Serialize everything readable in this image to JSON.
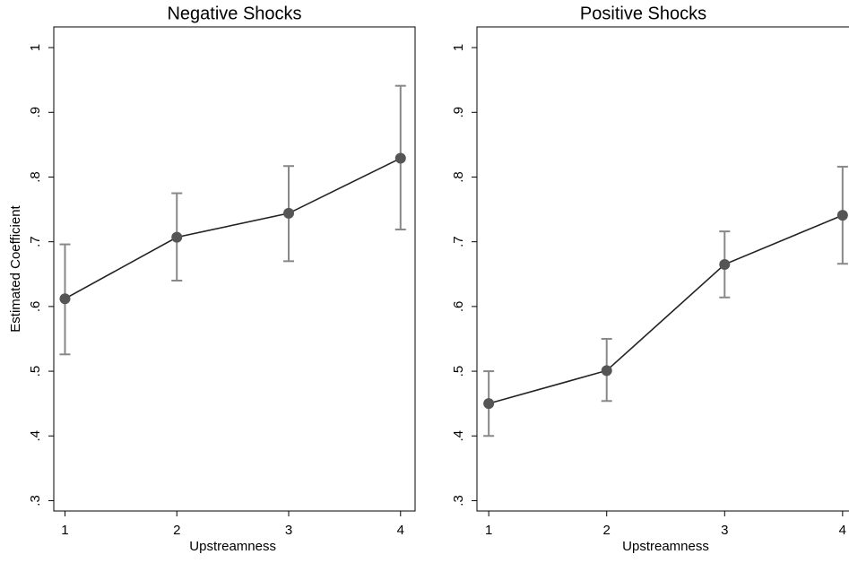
{
  "chart_data": [
    {
      "type": "line",
      "title": "Negative Shocks",
      "y_label": "Estimated Coefficient",
      "x_label": "Upstreamness",
      "x": [
        1,
        2,
        3,
        4
      ],
      "series": [
        {
          "color": "#555555",
          "values": [
            0.612,
            0.707,
            0.744,
            0.829
          ],
          "lower": [
            0.526,
            0.64,
            0.67,
            0.719
          ],
          "upper": [
            0.696,
            0.775,
            0.817,
            0.941
          ]
        }
      ],
      "xlim": [
        0.9,
        4.13
      ],
      "xticks": [
        1,
        2,
        3,
        4
      ],
      "ylim": [
        0.284,
        1.032
      ],
      "yticks": [
        {
          "value": 0.3,
          "label": ".3"
        },
        {
          "value": 0.4,
          "label": ".4"
        },
        {
          "value": 0.5,
          "label": ".5"
        },
        {
          "value": 0.6,
          "label": ".6"
        },
        {
          "value": 0.7,
          "label": ".7"
        },
        {
          "value": 0.8,
          "label": ".8"
        },
        {
          "value": 0.9,
          "label": ".9"
        },
        1
      ]
    },
    {
      "type": "line",
      "title": "Positive Shocks",
      "x_label": "Upstreamness",
      "x": [
        1,
        2,
        3,
        4
      ],
      "series": [
        {
          "color": "#555555",
          "values": [
            0.45,
            0.501,
            0.665,
            0.741
          ],
          "lower": [
            0.4,
            0.454,
            0.614,
            0.666
          ],
          "upper": [
            0.5,
            0.55,
            0.716,
            0.816
          ]
        }
      ],
      "xlim": [
        0.9,
        4.1
      ],
      "xticks": [
        1,
        2,
        3,
        4
      ],
      "ylim": [
        0.284,
        1.032
      ],
      "yticks": [
        {
          "value": 0.3,
          "label": ".3"
        },
        {
          "value": 0.4,
          "label": ".4"
        },
        {
          "value": 0.5,
          "label": ".5"
        },
        {
          "value": 0.6,
          "label": ".6"
        },
        {
          "value": 0.7,
          "label": ".7"
        },
        {
          "value": 0.8,
          "label": ".8"
        },
        {
          "value": 0.9,
          "label": ".9"
        },
        1
      ]
    }
  ]
}
